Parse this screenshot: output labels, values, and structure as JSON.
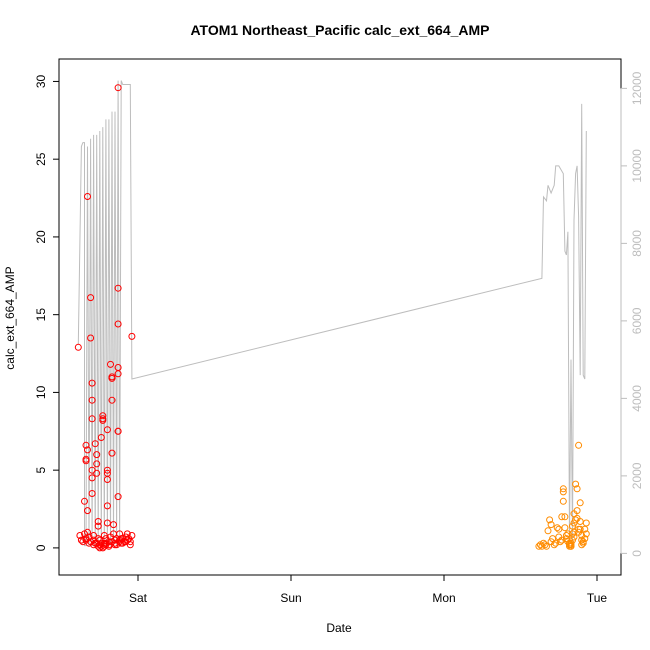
{
  "chart_data": {
    "type": "scatter",
    "title": "ATOM1 Northeast_Pacific calc_ext_664_AMP",
    "xlabel": "Date",
    "ylabel": "calc_ext_664_AMP",
    "x_ticks": [
      "Sat",
      "Sun",
      "Mon",
      "Tue"
    ],
    "x_range_days": [
      -0.38,
      3.1
    ],
    "ylim": [
      -1.1,
      30.8
    ],
    "y_ticks": [
      0,
      5,
      10,
      15,
      20,
      25,
      30
    ],
    "y2lim": [
      -300,
      12500
    ],
    "y2_ticks": [
      0,
      2000,
      4000,
      6000,
      8000,
      10000,
      12000
    ],
    "grid": false,
    "colors": {
      "series1": "#ff0000",
      "series2": "#ff8c00",
      "line": "#bdbdbd",
      "axis": "#000000",
      "axis_right": "#bdbdbd"
    },
    "series": [
      {
        "color": "#ff0000",
        "points": [
          [
            -0.39,
            12.9
          ],
          [
            -0.38,
            0.8
          ],
          [
            -0.37,
            0.5
          ],
          [
            -0.36,
            0.4
          ],
          [
            -0.35,
            0.9
          ],
          [
            -0.34,
            0.6
          ],
          [
            -0.35,
            3.0
          ],
          [
            -0.34,
            6.6
          ],
          [
            -0.33,
            6.3
          ],
          [
            -0.34,
            5.7
          ],
          [
            -0.34,
            5.6
          ],
          [
            -0.33,
            22.6
          ],
          [
            -0.33,
            2.4
          ],
          [
            -0.33,
            1.0
          ],
          [
            -0.32,
            0.7
          ],
          [
            -0.31,
            0.4
          ],
          [
            -0.31,
            16.1
          ],
          [
            -0.31,
            13.5
          ],
          [
            -0.3,
            10.6
          ],
          [
            -0.3,
            9.5
          ],
          [
            -0.3,
            8.3
          ],
          [
            -0.3,
            5.0
          ],
          [
            -0.3,
            4.5
          ],
          [
            -0.3,
            3.5
          ],
          [
            -0.29,
            0.8
          ],
          [
            -0.29,
            0.5
          ],
          [
            -0.28,
            0.3
          ],
          [
            -0.28,
            6.7
          ],
          [
            -0.27,
            6.0
          ],
          [
            -0.27,
            5.4
          ],
          [
            -0.27,
            4.8
          ],
          [
            -0.26,
            1.7
          ],
          [
            -0.26,
            1.4
          ],
          [
            -0.26,
            0.6
          ],
          [
            -0.25,
            0.2
          ],
          [
            -0.25,
            0.5
          ],
          [
            -0.24,
            0.1
          ],
          [
            -0.24,
            7.1
          ],
          [
            -0.23,
            8.5
          ],
          [
            -0.23,
            8.3
          ],
          [
            -0.23,
            8.2
          ],
          [
            -0.22,
            0.3
          ],
          [
            -0.22,
            0.1
          ],
          [
            -0.22,
            0.8
          ],
          [
            -0.21,
            0.2
          ],
          [
            -0.21,
            0.6
          ],
          [
            -0.2,
            7.6
          ],
          [
            -0.2,
            5.0
          ],
          [
            -0.2,
            4.8
          ],
          [
            -0.2,
            4.4
          ],
          [
            -0.2,
            2.7
          ],
          [
            -0.2,
            1.6
          ],
          [
            -0.19,
            0.4
          ],
          [
            -0.19,
            0.1
          ],
          [
            -0.18,
            0.7
          ],
          [
            -0.18,
            11.8
          ],
          [
            -0.17,
            11.0
          ],
          [
            -0.17,
            10.9
          ],
          [
            -0.17,
            9.5
          ],
          [
            -0.17,
            6.1
          ],
          [
            -0.16,
            1.5
          ],
          [
            -0.16,
            0.9
          ],
          [
            -0.15,
            0.5
          ],
          [
            -0.15,
            0.2
          ],
          [
            -0.14,
            0.6
          ],
          [
            -0.13,
            29.6
          ],
          [
            -0.13,
            16.7
          ],
          [
            -0.13,
            14.4
          ],
          [
            -0.13,
            11.6
          ],
          [
            -0.13,
            11.2
          ],
          [
            -0.13,
            7.5
          ],
          [
            -0.13,
            7.5
          ],
          [
            -0.13,
            3.3
          ],
          [
            -0.12,
            0.5
          ],
          [
            -0.12,
            0.9
          ],
          [
            -0.11,
            0.3
          ],
          [
            -0.1,
            0.6
          ],
          [
            -0.09,
            0.4
          ],
          [
            -0.08,
            0.7
          ],
          [
            -0.07,
            0.9
          ],
          [
            -0.06,
            0.6
          ],
          [
            -0.05,
            0.4
          ],
          [
            -0.04,
            13.6
          ],
          [
            -0.04,
            0.8
          ],
          [
            -0.05,
            0.2
          ],
          [
            -0.34,
            0.5
          ],
          [
            -0.32,
            0.3
          ],
          [
            -0.29,
            0.2
          ],
          [
            -0.27,
            0.3
          ],
          [
            -0.26,
            0.1
          ],
          [
            -0.25,
            0.0
          ],
          [
            -0.24,
            0.3
          ],
          [
            -0.23,
            0.0
          ],
          [
            -0.21,
            0.3
          ],
          [
            -0.19,
            0.2
          ],
          [
            -0.17,
            0.4
          ],
          [
            -0.15,
            0.3
          ],
          [
            -0.14,
            0.2
          ],
          [
            -0.12,
            0.4
          ],
          [
            -0.11,
            0.6
          ],
          [
            -0.1,
            0.3
          ],
          [
            -0.08,
            0.4
          ],
          [
            -0.07,
            0.5
          ]
        ]
      },
      {
        "color": "#ff8c00",
        "points": [
          [
            2.62,
            0.1
          ],
          [
            2.63,
            0.2
          ],
          [
            2.64,
            0.1
          ],
          [
            2.65,
            0.3
          ],
          [
            2.66,
            0.2
          ],
          [
            2.67,
            0.1
          ],
          [
            2.68,
            1.1
          ],
          [
            2.69,
            1.8
          ],
          [
            2.7,
            1.5
          ],
          [
            2.7,
            0.4
          ],
          [
            2.71,
            0.6
          ],
          [
            2.72,
            0.2
          ],
          [
            2.73,
            0.3
          ],
          [
            2.74,
            1.3
          ],
          [
            2.75,
            1.2
          ],
          [
            2.75,
            0.7
          ],
          [
            2.76,
            0.4
          ],
          [
            2.77,
            0.5
          ],
          [
            2.77,
            2.0
          ],
          [
            2.78,
            3.8
          ],
          [
            2.78,
            3.6
          ],
          [
            2.78,
            3.0
          ],
          [
            2.79,
            2.0
          ],
          [
            2.79,
            1.3
          ],
          [
            2.8,
            0.8
          ],
          [
            2.8,
            0.6
          ],
          [
            2.81,
            0.9
          ],
          [
            2.81,
            0.4
          ],
          [
            2.82,
            0.3
          ],
          [
            2.82,
            0.2
          ],
          [
            2.82,
            0.1
          ],
          [
            2.83,
            0.1
          ],
          [
            2.83,
            0.2
          ],
          [
            2.83,
            0.3
          ],
          [
            2.83,
            0.1
          ],
          [
            2.84,
            0.5
          ],
          [
            2.84,
            0.9
          ],
          [
            2.84,
            1.4
          ],
          [
            2.85,
            2.2
          ],
          [
            2.85,
            1.6
          ],
          [
            2.85,
            0.7
          ],
          [
            2.85,
            1.0
          ],
          [
            2.86,
            1.8
          ],
          [
            2.86,
            4.1
          ],
          [
            2.87,
            3.8
          ],
          [
            2.87,
            2.4
          ],
          [
            2.87,
            1.9
          ],
          [
            2.88,
            1.2
          ],
          [
            2.88,
            1.0
          ],
          [
            2.88,
            6.6
          ],
          [
            2.89,
            2.9
          ],
          [
            2.89,
            1.7
          ],
          [
            2.89,
            1.2
          ],
          [
            2.9,
            0.8
          ],
          [
            2.9,
            0.5
          ],
          [
            2.9,
            0.2
          ],
          [
            2.91,
            0.3
          ],
          [
            2.91,
            0.4
          ],
          [
            2.92,
            0.6
          ],
          [
            2.92,
            1.2
          ],
          [
            2.93,
            1.6
          ],
          [
            2.93,
            0.9
          ]
        ]
      }
    ],
    "line_series": {
      "color": "#bdbdbd",
      "points": [
        [
          -0.39,
          5400
        ],
        [
          -0.37,
          10500
        ],
        [
          -0.36,
          10600
        ],
        [
          -0.35,
          10600
        ],
        [
          -0.35,
          200
        ],
        [
          -0.34,
          200
        ],
        [
          -0.33,
          10500
        ],
        [
          -0.32,
          200
        ],
        [
          -0.31,
          10700
        ],
        [
          -0.3,
          200
        ],
        [
          -0.29,
          10800
        ],
        [
          -0.28,
          200
        ],
        [
          -0.27,
          10800
        ],
        [
          -0.26,
          200
        ],
        [
          -0.25,
          10900
        ],
        [
          -0.24,
          200
        ],
        [
          -0.23,
          11000
        ],
        [
          -0.22,
          200
        ],
        [
          -0.21,
          11200
        ],
        [
          -0.2,
          200
        ],
        [
          -0.19,
          11200
        ],
        [
          -0.18,
          200
        ],
        [
          -0.17,
          11400
        ],
        [
          -0.16,
          200
        ],
        [
          -0.15,
          11400
        ],
        [
          -0.14,
          200
        ],
        [
          -0.13,
          12200
        ],
        [
          -0.12,
          200
        ],
        [
          -0.11,
          12200
        ],
        [
          -0.1,
          12100
        ],
        [
          -0.05,
          12100
        ],
        [
          -0.04,
          4500
        ],
        [
          2.64,
          7100
        ],
        [
          2.65,
          9200
        ],
        [
          2.67,
          9100
        ],
        [
          2.68,
          9500
        ],
        [
          2.7,
          9300
        ],
        [
          2.72,
          9500
        ],
        [
          2.73,
          10000
        ],
        [
          2.75,
          10000
        ],
        [
          2.78,
          9800
        ],
        [
          2.79,
          7800
        ],
        [
          2.8,
          7700
        ],
        [
          2.81,
          8300
        ],
        [
          2.82,
          300
        ],
        [
          2.83,
          5000
        ],
        [
          2.84,
          300
        ],
        [
          2.85,
          8600
        ],
        [
          2.86,
          9800
        ],
        [
          2.87,
          10000
        ],
        [
          2.88,
          8700
        ],
        [
          2.89,
          4600
        ],
        [
          2.9,
          11600
        ],
        [
          2.91,
          4600
        ],
        [
          2.92,
          4500
        ],
        [
          2.93,
          10900
        ]
      ]
    }
  }
}
